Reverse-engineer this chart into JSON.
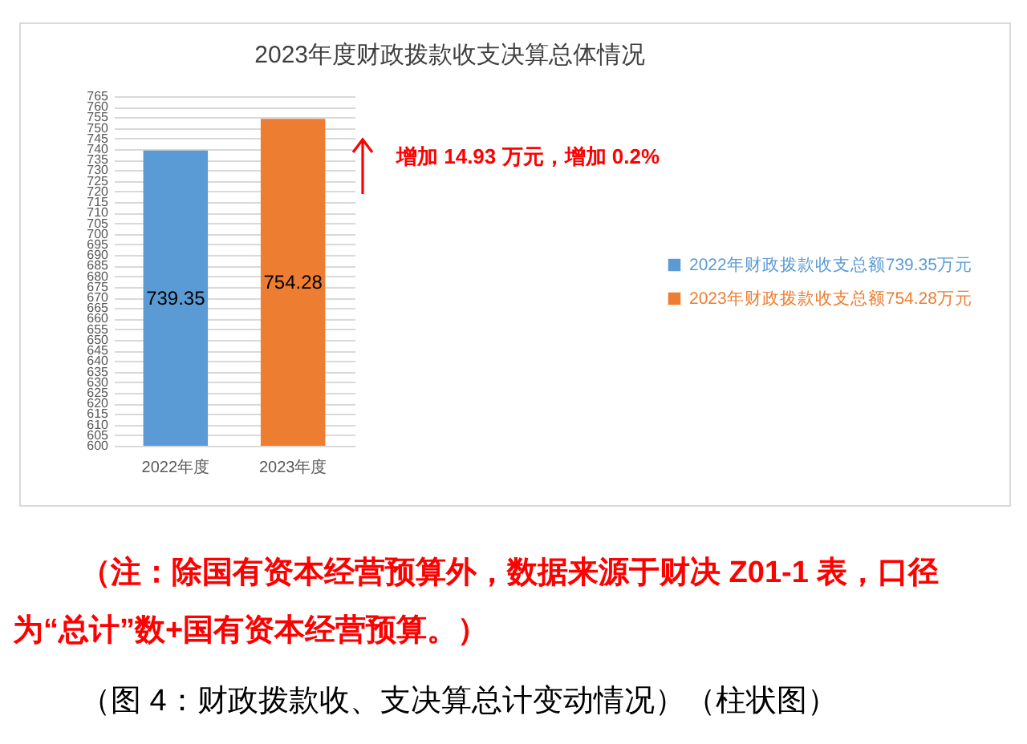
{
  "chart_data": {
    "type": "bar",
    "title": "2023年度财政拨款收支决算总体情况",
    "categories": [
      "2022年度",
      "2023年度"
    ],
    "series": [
      {
        "name": "2022年财政拨款收支总额739.35万元",
        "color": "#5b9bd5",
        "values": [
          739.35,
          null
        ]
      },
      {
        "name": "2023年财政拨款收支总额754.28万元",
        "color": "#ed7d31",
        "values": [
          null,
          754.28
        ]
      }
    ],
    "ylim": [
      600,
      765
    ],
    "yticks": [
      600,
      605,
      610,
      615,
      620,
      625,
      630,
      635,
      640,
      645,
      650,
      655,
      660,
      665,
      670,
      675,
      680,
      685,
      690,
      695,
      700,
      705,
      710,
      715,
      720,
      725,
      730,
      735,
      740,
      745,
      750,
      755,
      760,
      765
    ],
    "grid": "y",
    "legend": "right",
    "data_labels": true,
    "annotations": [
      "增加 14.93 万元，增加 0.2%",
      "（注：除国有资本经营预算外，数据来源于财决 Z01-1 表，口径为“总计”数+国有资本经营预算。）",
      "（图 4：财政拨款收、支决算总计变动情况）（柱状图）"
    ]
  }
}
